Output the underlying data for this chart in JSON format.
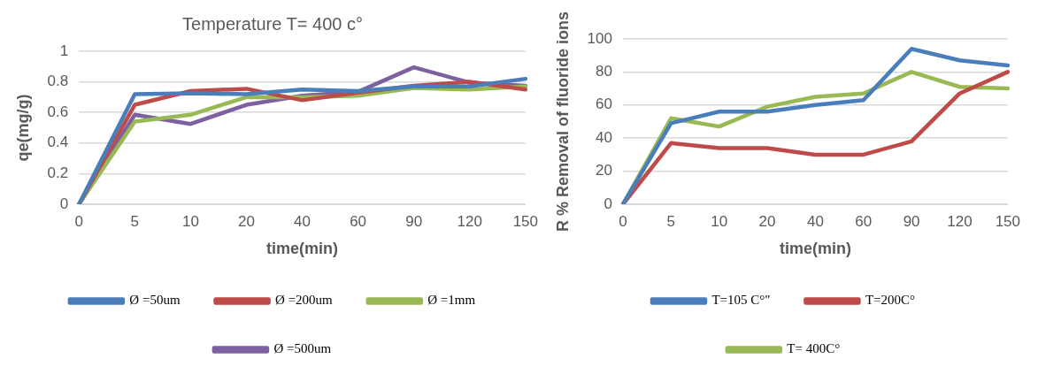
{
  "chart_data": [
    {
      "type": "line",
      "title": "Temperature T= 400 c°",
      "xlabel": "time(min)",
      "ylabel": "qe(mg/g)",
      "categories": [
        "0",
        "5",
        "10",
        "20",
        "40",
        "60",
        "90",
        "120",
        "150"
      ],
      "series": [
        {
          "name": "Ø =50um",
          "color": "#4a7ebb",
          "values": [
            0,
            0.72,
            0.725,
            0.72,
            0.75,
            0.74,
            0.77,
            0.77,
            0.82
          ]
        },
        {
          "name": "Ø =200um",
          "color": "#be4b48",
          "values": [
            0,
            0.65,
            0.74,
            0.755,
            0.68,
            0.73,
            0.775,
            0.8,
            0.75
          ]
        },
        {
          "name": "Ø =1mm",
          "color": "#98b954",
          "values": [
            0,
            0.54,
            0.585,
            0.7,
            0.7,
            0.71,
            0.76,
            0.75,
            0.77
          ]
        },
        {
          "name": "Ø =500um",
          "color": "#7d60a0",
          "values": [
            0,
            0.585,
            0.525,
            0.65,
            0.71,
            0.735,
            0.895,
            0.795,
            0.775
          ]
        }
      ],
      "ylim": [
        0,
        1
      ],
      "yticks": [
        0,
        0.2,
        0.4,
        0.6,
        0.8,
        1
      ],
      "grid": "y",
      "legend": "bottom",
      "line_style": "solid"
    },
    {
      "type": "line",
      "xlabel": "time(min)",
      "ylabel": "R % Removal of fluoride ions",
      "categories": [
        "0",
        "5",
        "10",
        "20",
        "40",
        "60",
        "90",
        "120",
        "150"
      ],
      "series": [
        {
          "name": "T=105 C°\"",
          "color": "#4a7ebb",
          "values": [
            0,
            49,
            56,
            56,
            60,
            63,
            94,
            87,
            84
          ]
        },
        {
          "name": "T=200C°",
          "color": "#be4b48",
          "values": [
            0,
            37,
            34,
            34,
            30,
            30,
            38,
            67,
            80
          ]
        },
        {
          "name": "T= 400C°",
          "color": "#98b954",
          "values": [
            0,
            52,
            47,
            59,
            65,
            67,
            80,
            71,
            70
          ]
        }
      ],
      "ylim": [
        0,
        100
      ],
      "yticks": [
        0,
        20,
        40,
        60,
        80,
        100
      ],
      "grid": "y",
      "legend": "bottom",
      "line_style": "solid"
    }
  ]
}
